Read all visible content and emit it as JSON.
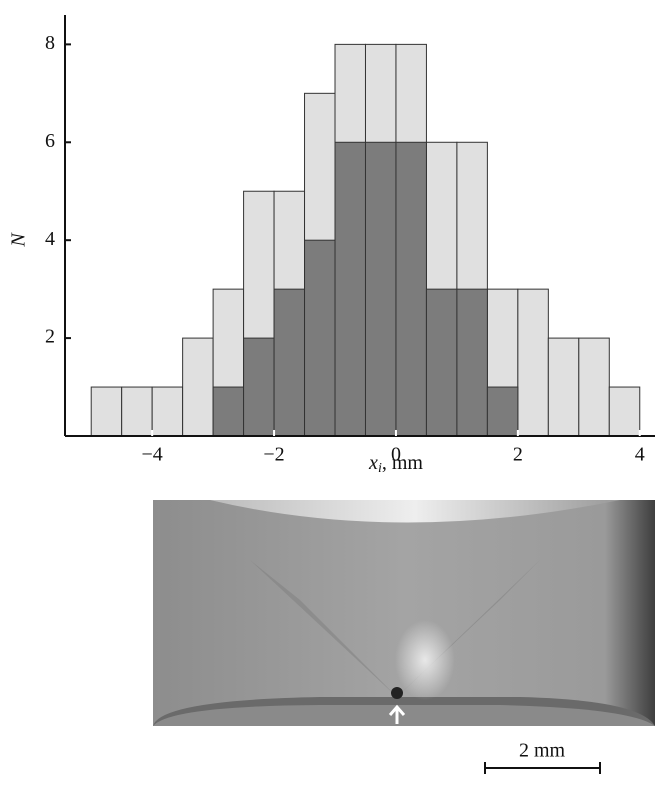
{
  "chart_data": {
    "type": "histogram",
    "bins": [
      -5,
      -4.5,
      -4,
      -3.5,
      -3,
      -2.5,
      -2,
      -1.5,
      -1,
      -0.5,
      0,
      0.5,
      1,
      1.5,
      2,
      2.5,
      3,
      3.5,
      4
    ],
    "series": [
      {
        "color": "#e0e0e0",
        "values": [
          1,
          1,
          1,
          2,
          3,
          5,
          5,
          7,
          8,
          8,
          8,
          6,
          6,
          3,
          3,
          2,
          2,
          1
        ]
      },
      {
        "color": "#7c7c7c",
        "values": [
          0,
          0,
          0,
          0,
          1,
          2,
          3,
          4,
          6,
          6,
          6,
          3,
          3,
          1,
          0,
          0,
          0,
          0
        ]
      }
    ],
    "xlim": [
      -5.43,
      4.25
    ],
    "ylim": [
      0,
      8.6
    ],
    "xticks": [
      {
        "value": -4,
        "label": "−4"
      },
      {
        "value": -2,
        "label": "−2"
      },
      0,
      2,
      4
    ],
    "yticks": [
      2,
      4,
      6,
      8
    ],
    "xlabel": {
      "symbol": "x",
      "subscript": "i",
      "unit": ", mm"
    },
    "ylabel": "N"
  },
  "image": {
    "scale_bar": "2 mm"
  }
}
